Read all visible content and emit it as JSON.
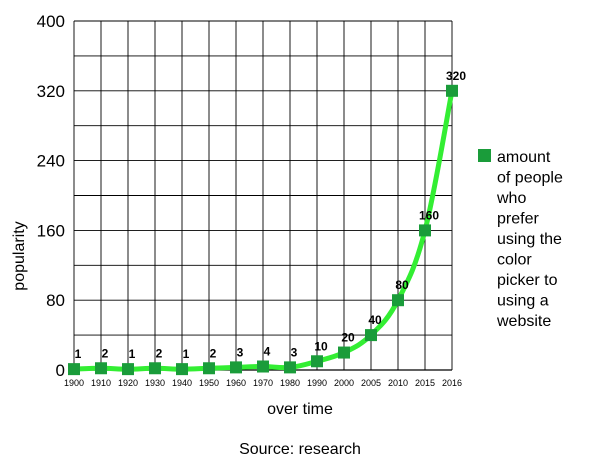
{
  "chart_data": {
    "type": "line",
    "title": "",
    "xlabel": "over time",
    "ylabel": "popularity",
    "caption": "Source: research",
    "categories": [
      "1900",
      "1910",
      "1920",
      "1930",
      "1940",
      "1950",
      "1960",
      "1970",
      "1980",
      "1990",
      "2000",
      "2005",
      "2010",
      "2015",
      "2016"
    ],
    "series": [
      {
        "name": "amount of people who prefer using the color picker to using a website",
        "values": [
          1,
          2,
          1,
          2,
          1,
          2,
          3,
          4,
          3,
          10,
          20,
          40,
          80,
          160,
          320
        ],
        "data_labels": [
          "1",
          "2",
          "1",
          "2",
          "1",
          "2",
          "3",
          "4",
          "3",
          "10",
          "20",
          "40",
          "80",
          "160",
          "320"
        ],
        "line_color": "#33ee33",
        "marker_color": "#1a9c3a"
      }
    ],
    "yticks": [
      "0",
      "80",
      "160",
      "240",
      "320",
      "400"
    ],
    "ylim": [
      0,
      400
    ],
    "grid": true,
    "legend_position": "right",
    "legend_lines": [
      "amount",
      "of people",
      "who",
      "prefer",
      "using the",
      "color",
      "picker to",
      "using a",
      "website"
    ]
  }
}
